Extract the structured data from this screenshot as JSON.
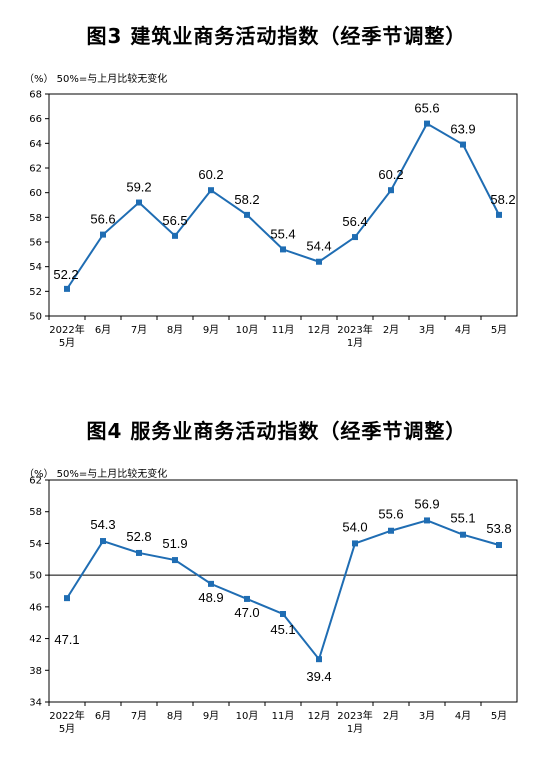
{
  "charts": [
    {
      "title": "图3  建筑业商务活动指数（经季节调整）",
      "unit_note": "（%）  50%=与上月比较无变化"
    },
    {
      "title": "图4  服务业商务活动指数（经季节调整）",
      "unit_note": "（%）  50%=与上月比较无变化"
    }
  ],
  "chart_data": [
    {
      "type": "line",
      "title": "图3  建筑业商务活动指数（经季节调整）",
      "ylabel": "（%）",
      "note": "50%=与上月比较无变化",
      "categories": [
        [
          "2022年",
          "5月"
        ],
        [
          "6月"
        ],
        [
          "7月"
        ],
        [
          "8月"
        ],
        [
          "9月"
        ],
        [
          "10月"
        ],
        [
          "11月"
        ],
        [
          "12月"
        ],
        [
          "2023年",
          "1月"
        ],
        [
          "2月"
        ],
        [
          "3月"
        ],
        [
          "4月"
        ],
        [
          "5月"
        ]
      ],
      "values": [
        52.2,
        56.6,
        59.2,
        56.5,
        60.2,
        58.2,
        55.4,
        54.4,
        56.4,
        60.2,
        65.6,
        63.9,
        58.2
      ],
      "ylim": [
        50,
        68
      ],
      "yticks": [
        50,
        52,
        54,
        56,
        58,
        60,
        62,
        64,
        66,
        68
      ],
      "reference_line": null,
      "line_color": "#1f6db3",
      "grid": false
    },
    {
      "type": "line",
      "title": "图4  服务业商务活动指数（经季节调整）",
      "ylabel": "（%）",
      "note": "50%=与上月比较无变化",
      "categories": [
        [
          "2022年",
          "5月"
        ],
        [
          "6月"
        ],
        [
          "7月"
        ],
        [
          "8月"
        ],
        [
          "9月"
        ],
        [
          "10月"
        ],
        [
          "11月"
        ],
        [
          "12月"
        ],
        [
          "2023年",
          "1月"
        ],
        [
          "2月"
        ],
        [
          "3月"
        ],
        [
          "4月"
        ],
        [
          "5月"
        ]
      ],
      "values": [
        47.1,
        54.3,
        52.8,
        51.9,
        48.9,
        47.0,
        45.1,
        39.4,
        54.0,
        55.6,
        56.9,
        55.1,
        53.8
      ],
      "ylim": [
        34,
        62
      ],
      "yticks": [
        34,
        38,
        42,
        46,
        50,
        54,
        58,
        62
      ],
      "reference_line": 50,
      "line_color": "#1f6db3",
      "grid": false
    }
  ]
}
